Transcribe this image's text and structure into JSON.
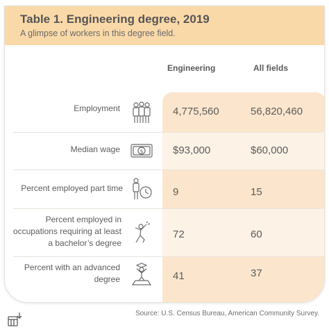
{
  "title": "Table 1. Engineering degree, 2019",
  "subtitle": "A glimpse of workers in this degree field.",
  "source": "Source: U.S. Census Bureau, American Community Survey.",
  "chart_data": {
    "type": "table",
    "columns": [
      "Engineering",
      "All fields"
    ],
    "rows": [
      {
        "label": "Employment",
        "icon": "workers-icon",
        "engineering": "4,775,560",
        "all_fields": "56,820,460"
      },
      {
        "label": "Median wage",
        "icon": "money-icon",
        "engineering": "$93,000",
        "all_fields": "$60,000"
      },
      {
        "label": "Percent employed part time",
        "icon": "person-clock-icon",
        "engineering": "9",
        "all_fields": "15"
      },
      {
        "label": "Percent employed in occupations requiring at least a bachelor’s degree",
        "icon": "celebrating-person-icon",
        "engineering": "72",
        "all_fields": "60"
      },
      {
        "label": "Percent with an advanced degree",
        "icon": "graduate-podium-icon",
        "engineering": "41",
        "all_fields": "37"
      }
    ]
  }
}
